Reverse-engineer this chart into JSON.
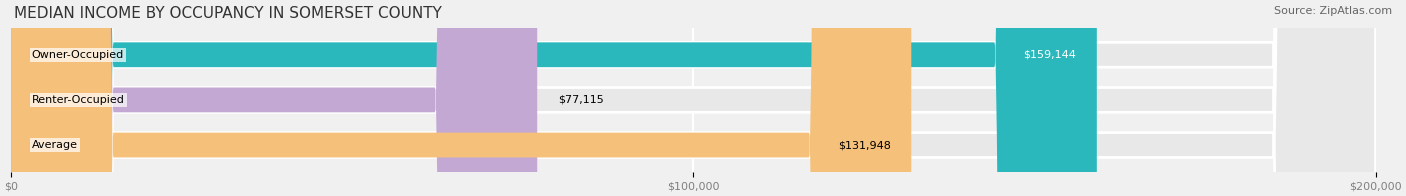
{
  "title": "MEDIAN INCOME BY OCCUPANCY IN SOMERSET COUNTY",
  "source": "Source: ZipAtlas.com",
  "categories": [
    "Owner-Occupied",
    "Renter-Occupied",
    "Average"
  ],
  "values": [
    159144,
    77115,
    131948
  ],
  "bar_colors": [
    "#2ab8bc",
    "#c4a8d4",
    "#f5c07a"
  ],
  "bar_labels": [
    "$159,144",
    "$77,115",
    "$131,948"
  ],
  "xlim": [
    0,
    200000
  ],
  "xticks": [
    0,
    100000,
    200000
  ],
  "xtick_labels": [
    "$0",
    "$100,000",
    "$200,000"
  ],
  "background_color": "#f0f0f0",
  "bar_background_color": "#e8e8e8",
  "title_fontsize": 11,
  "source_fontsize": 8,
  "label_fontsize": 8,
  "tick_fontsize": 8
}
